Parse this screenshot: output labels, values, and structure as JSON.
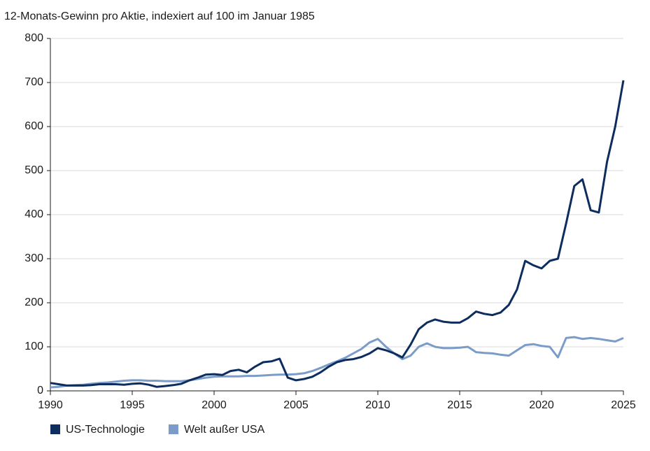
{
  "chart_data": {
    "type": "line",
    "title": "12-Monats-Gewinn pro Aktie, indexiert auf 100 im Januar 1985",
    "x": [
      1990,
      1990.5,
      1991,
      1991.5,
      1992,
      1992.5,
      1993,
      1993.5,
      1994,
      1994.5,
      1995,
      1995.5,
      1996,
      1996.5,
      1997,
      1997.5,
      1998,
      1998.5,
      1999,
      1999.5,
      2000,
      2000.5,
      2001,
      2001.5,
      2002,
      2002.5,
      2003,
      2003.5,
      2004,
      2004.5,
      2005,
      2005.5,
      2006,
      2006.5,
      2007,
      2007.5,
      2008,
      2008.5,
      2009,
      2009.5,
      2010,
      2010.5,
      2011,
      2011.5,
      2012,
      2012.5,
      2013,
      2013.5,
      2014,
      2014.5,
      2015,
      2015.5,
      2016,
      2016.5,
      2017,
      2017.5,
      2018,
      2018.5,
      2019,
      2019.5,
      2020,
      2020.5,
      2021,
      2021.5,
      2022,
      2022.5,
      2023,
      2023.5,
      2024,
      2024.5,
      2025
    ],
    "series": [
      {
        "name": "US-Technologie",
        "color": "#0d2d5e",
        "values": [
          18,
          15,
          12,
          12,
          12,
          13,
          15,
          15,
          15,
          14,
          16,
          17,
          14,
          9,
          11,
          13,
          16,
          24,
          30,
          37,
          38,
          36,
          45,
          48,
          42,
          55,
          65,
          67,
          73,
          30,
          24,
          27,
          32,
          42,
          55,
          65,
          70,
          72,
          77,
          85,
          97,
          92,
          85,
          76,
          105,
          140,
          155,
          162,
          157,
          155,
          155,
          165,
          180,
          175,
          172,
          178,
          195,
          230,
          295,
          285,
          278,
          295,
          300,
          380,
          465,
          480,
          410,
          405,
          520,
          600,
          705
        ]
      },
      {
        "name": "Welt außer USA",
        "color": "#7b9cc9",
        "values": [
          8,
          9,
          12,
          13,
          14,
          16,
          18,
          19,
          21,
          23,
          24,
          24,
          23,
          23,
          22,
          22,
          22,
          24,
          27,
          30,
          32,
          33,
          33,
          33,
          34,
          34,
          35,
          36,
          37,
          37,
          38,
          40,
          45,
          52,
          60,
          67,
          75,
          85,
          95,
          110,
          118,
          100,
          85,
          72,
          80,
          100,
          108,
          100,
          97,
          97,
          98,
          100,
          88,
          86,
          85,
          82,
          80,
          92,
          104,
          106,
          102,
          100,
          76,
          120,
          122,
          118,
          120,
          118,
          115,
          112,
          120
        ]
      }
    ],
    "xlim": [
      1990,
      2025
    ],
    "xticks": [
      1990,
      1995,
      2000,
      2005,
      2010,
      2015,
      2020,
      2025
    ],
    "ylim": [
      0,
      800
    ],
    "yticks": [
      0,
      100,
      200,
      300,
      400,
      500,
      600,
      700,
      800
    ],
    "grid": true
  }
}
